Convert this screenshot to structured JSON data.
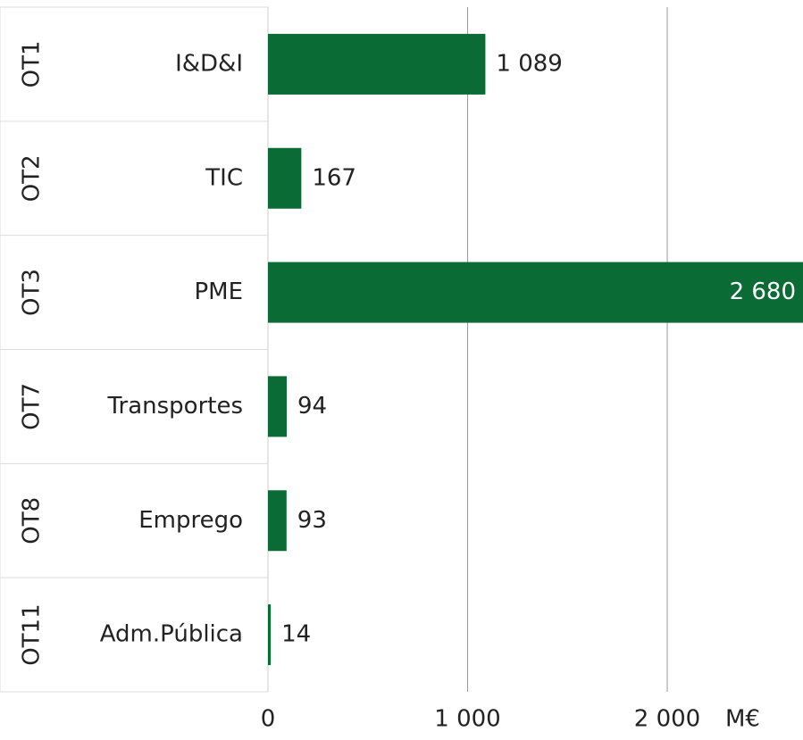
{
  "chart_data": {
    "type": "bar",
    "orientation": "horizontal",
    "groups": [
      "OT1",
      "OT2",
      "OT3",
      "OT7",
      "OT8",
      "OT11"
    ],
    "categories": [
      "I&D&I",
      "TIC",
      "PME",
      "Transportes",
      "Emprego",
      "Adm.Pública"
    ],
    "values": [
      1089,
      167,
      2680,
      94,
      93,
      14
    ],
    "value_labels": [
      "1 089",
      "167",
      "2 680",
      "94",
      "93",
      "14"
    ],
    "color": "#0b6b35",
    "xlim": [
      0,
      2680
    ],
    "xticks": [
      0,
      {
        "value": 1000,
        "label": "1 000"
      },
      {
        "value": 2000,
        "label": "2 000"
      }
    ],
    "x_unit": "M€",
    "grid": true
  }
}
